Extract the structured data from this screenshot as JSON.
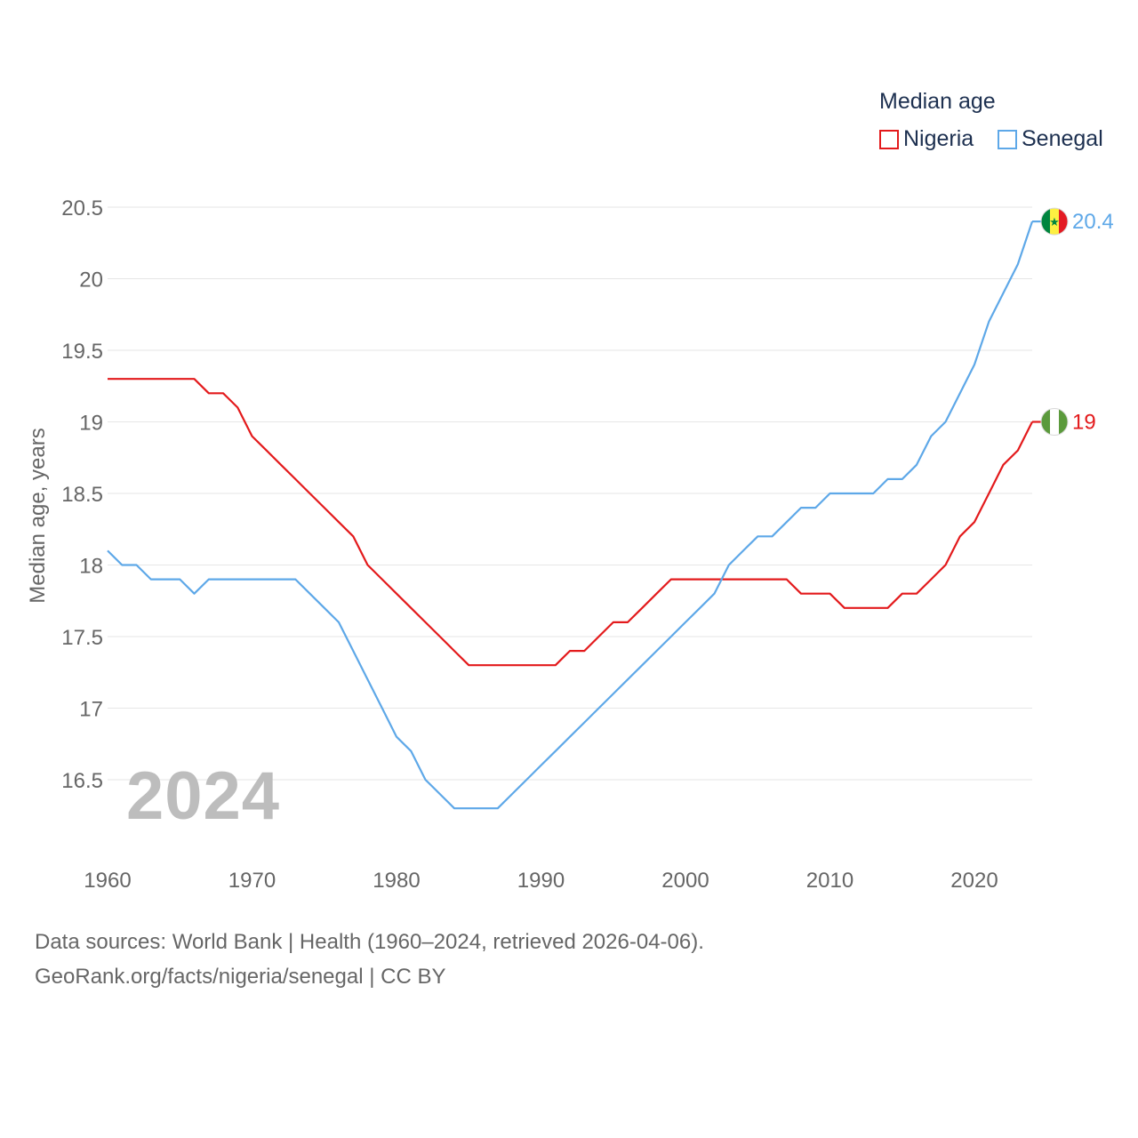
{
  "colors": {
    "nigeria": "#e31a1c",
    "senegal": "#5ea8e8",
    "grid": "#e6e6e6",
    "axis_text": "#666666"
  },
  "legend": {
    "title": "Median age",
    "items": [
      {
        "name": "Nigeria",
        "color": "#e31a1c"
      },
      {
        "name": "Senegal",
        "color": "#5ea8e8"
      }
    ]
  },
  "watermark_year": "2024",
  "source": {
    "line1": "Data sources: World Bank | Health (1960–2024, retrieved 2026-04-06).",
    "line2": "GeoRank.org/facts/nigeria/senegal | CC BY"
  },
  "chart_data": {
    "type": "line",
    "title": "Median age",
    "xlabel": "",
    "ylabel": "Median age, years",
    "xlim": [
      1960,
      2024
    ],
    "ylim": [
      16,
      20.5
    ],
    "x_ticks": [
      1960,
      1970,
      1980,
      1990,
      2000,
      2010,
      2020
    ],
    "y_ticks": [
      16.5,
      17,
      17.5,
      18,
      18.5,
      19,
      19.5,
      20,
      20.5
    ],
    "y_tick_labels": [
      "16.5",
      "17",
      "17.5",
      "18",
      "18.5",
      "19",
      "19.5",
      "20",
      "20.5"
    ],
    "x": [
      1960,
      1961,
      1962,
      1963,
      1964,
      1965,
      1966,
      1967,
      1968,
      1969,
      1970,
      1971,
      1972,
      1973,
      1974,
      1975,
      1976,
      1977,
      1978,
      1979,
      1980,
      1981,
      1982,
      1983,
      1984,
      1985,
      1986,
      1987,
      1988,
      1989,
      1990,
      1991,
      1992,
      1993,
      1994,
      1995,
      1996,
      1997,
      1998,
      1999,
      2000,
      2001,
      2002,
      2003,
      2004,
      2005,
      2006,
      2007,
      2008,
      2009,
      2010,
      2011,
      2012,
      2013,
      2014,
      2015,
      2016,
      2017,
      2018,
      2019,
      2020,
      2021,
      2022,
      2023,
      2024
    ],
    "series": [
      {
        "name": "Nigeria",
        "color": "#e31a1c",
        "end_label": "19",
        "flag": "nigeria-flag-icon",
        "values": [
          19.3,
          19.3,
          19.3,
          19.3,
          19.3,
          19.3,
          19.3,
          19.2,
          19.2,
          19.1,
          18.9,
          18.8,
          18.7,
          18.6,
          18.5,
          18.4,
          18.3,
          18.2,
          18.0,
          17.9,
          17.8,
          17.7,
          17.6,
          17.5,
          17.4,
          17.3,
          17.3,
          17.3,
          17.3,
          17.3,
          17.3,
          17.3,
          17.4,
          17.4,
          17.5,
          17.6,
          17.6,
          17.7,
          17.8,
          17.9,
          17.9,
          17.9,
          17.9,
          17.9,
          17.9,
          17.9,
          17.9,
          17.9,
          17.8,
          17.8,
          17.8,
          17.7,
          17.7,
          17.7,
          17.7,
          17.8,
          17.8,
          17.9,
          18.0,
          18.2,
          18.3,
          18.5,
          18.7,
          18.8,
          19.0
        ]
      },
      {
        "name": "Senegal",
        "color": "#5ea8e8",
        "end_label": "20.4",
        "flag": "senegal-flag-icon",
        "values": [
          18.1,
          18.0,
          18.0,
          17.9,
          17.9,
          17.9,
          17.8,
          17.9,
          17.9,
          17.9,
          17.9,
          17.9,
          17.9,
          17.9,
          17.8,
          17.7,
          17.6,
          17.4,
          17.2,
          17.0,
          16.8,
          16.7,
          16.5,
          16.4,
          16.3,
          16.3,
          16.3,
          16.3,
          16.4,
          16.5,
          16.6,
          16.7,
          16.8,
          16.9,
          17.0,
          17.1,
          17.2,
          17.3,
          17.4,
          17.5,
          17.6,
          17.7,
          17.8,
          18.0,
          18.1,
          18.2,
          18.2,
          18.3,
          18.4,
          18.4,
          18.5,
          18.5,
          18.5,
          18.5,
          18.6,
          18.6,
          18.7,
          18.9,
          19.0,
          19.2,
          19.4,
          19.7,
          19.9,
          20.1,
          20.4
        ]
      }
    ]
  }
}
